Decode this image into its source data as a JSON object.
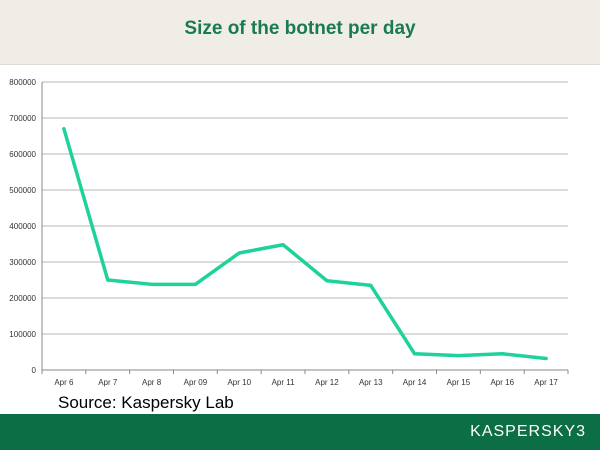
{
  "header": {
    "title": "Size of the botnet per day"
  },
  "source": {
    "text": "Source: Kaspersky Lab"
  },
  "footer": {
    "brand": "KASPERSKY",
    "brand_suffix": "3"
  },
  "colors": {
    "line": "#1fd19b",
    "header_bg": "#efede6",
    "title": "#1a7a52",
    "footer_bg": "#0b6e45",
    "grid": "#b8b8b8"
  },
  "chart_data": {
    "type": "line",
    "title": "Size of the botnet per day",
    "xlabel": "",
    "ylabel": "",
    "categories": [
      "Apr 6",
      "Apr 7",
      "Apr 8",
      "Apr 09",
      "Apr 10",
      "Apr 11",
      "Apr 12",
      "Apr 13",
      "Apr 14",
      "Apr 15",
      "Apr 16",
      "Apr 17"
    ],
    "series": [
      {
        "values": [
          670000,
          250000,
          238000,
          238000,
          325000,
          348000,
          248000,
          235000,
          45000,
          40000,
          45000,
          32000
        ]
      }
    ],
    "ylim": [
      0,
      800000
    ],
    "yticks": [
      0,
      100000,
      200000,
      300000,
      400000,
      500000,
      600000,
      700000,
      800000
    ],
    "grid": true,
    "legend": "none"
  }
}
